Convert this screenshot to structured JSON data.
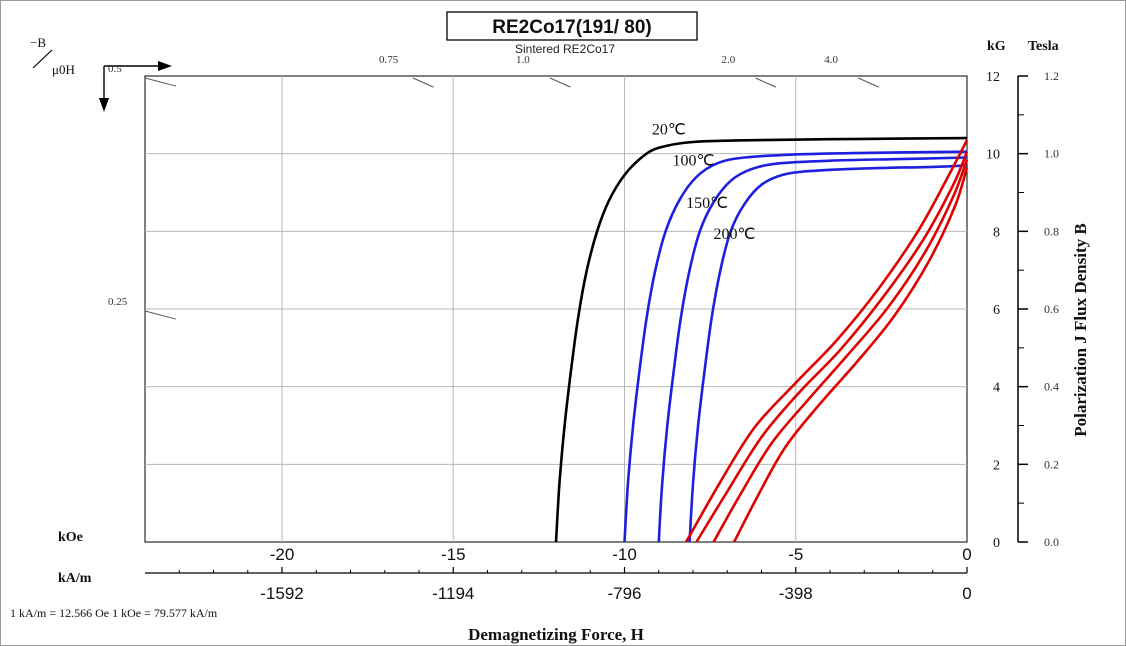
{
  "chart_data": {
    "type": "line",
    "title": "RE2Co17(191/ 80)",
    "subtitle": "Sintered RE2Co17",
    "xlabel": "Demagnetizing Force, H",
    "ylabel": "Polarization J Flux Density B",
    "x_unit_primary": "kOe",
    "x_unit_secondary": "kA/m",
    "y_unit_left": "kG",
    "y_unit_right": "Tesla",
    "permeance_label": "−B / μ0H",
    "conversion_note": "1 kA/m = 12.566 Oe 1 kOe = 79.577 kA/m",
    "xlim": [
      -24,
      0
    ],
    "ylim": [
      0,
      12
    ],
    "grid": true,
    "x_ticks": [
      -20,
      -15,
      -10,
      -5,
      0
    ],
    "x_tick_labels": [
      "-20",
      "-15",
      "-10",
      "-5",
      "0"
    ],
    "x2_tick_labels": [
      "-1592",
      "-1194",
      "-796",
      "-398",
      "0"
    ],
    "y_ticks_kG": [
      0,
      2,
      4,
      6,
      8,
      10,
      12
    ],
    "y_tick_labels_kG": [
      "0",
      "2",
      "4",
      "6",
      "8",
      "10",
      "12"
    ],
    "y_tick_labels_T": [
      "0.0",
      "0.2",
      "0.4",
      "0.6",
      "0.8",
      "1.0",
      "1.2"
    ],
    "permeance_coefficients": [
      {
        "label": "0.5",
        "x": -24,
        "y": 12
      },
      {
        "label": "0.75",
        "x": -16,
        "y": 12
      },
      {
        "label": "1.0",
        "x": -12,
        "y": 12
      },
      {
        "label": "2.0",
        "x": -6,
        "y": 12
      },
      {
        "label": "4.0",
        "x": -3,
        "y": 12
      },
      {
        "label": "0.25",
        "x": -24,
        "y": 6
      }
    ],
    "colors": {
      "intrinsic_20": "#000000",
      "intrinsic_hot": "#1f1fe0",
      "normal": "#e00000",
      "grid": "#b8b8b8",
      "axis": "#000000"
    },
    "series": [
      {
        "name": "20℃",
        "kind": "intrinsic",
        "x": [
          -12,
          -11.9,
          -11.75,
          -11.55,
          -11.35,
          -11.1,
          -10.8,
          -10.45,
          -10.0,
          -9.5,
          -9.0,
          -8.0,
          -6.0,
          -3.0,
          0
        ],
        "y": [
          0,
          1.5,
          3.0,
          4.5,
          5.8,
          7.0,
          8.0,
          8.8,
          9.45,
          9.9,
          10.15,
          10.3,
          10.35,
          10.38,
          10.4
        ]
      },
      {
        "name": "100℃",
        "kind": "intrinsic",
        "x": [
          -10,
          -9.9,
          -9.75,
          -9.55,
          -9.35,
          -9.1,
          -8.8,
          -8.4,
          -7.9,
          -7.3,
          -6.5,
          -5.0,
          -3.0,
          0
        ],
        "y": [
          0,
          1.5,
          3.0,
          4.5,
          5.8,
          7.0,
          8.0,
          8.8,
          9.4,
          9.75,
          9.9,
          9.98,
          10.02,
          10.05
        ]
      },
      {
        "name": "150℃",
        "kind": "intrinsic",
        "x": [
          -9,
          -8.9,
          -8.75,
          -8.55,
          -8.35,
          -8.1,
          -7.8,
          -7.4,
          -6.9,
          -6.3,
          -5.5,
          -4.0,
          -2.0,
          0
        ],
        "y": [
          0,
          1.5,
          3.0,
          4.5,
          5.8,
          7.0,
          8.0,
          8.75,
          9.3,
          9.6,
          9.75,
          9.82,
          9.86,
          9.9
        ]
      },
      {
        "name": "200℃",
        "kind": "intrinsic",
        "x": [
          -8.1,
          -8.0,
          -7.85,
          -7.65,
          -7.45,
          -7.2,
          -6.9,
          -6.5,
          -6.0,
          -5.4,
          -4.6,
          -3.0,
          -1.0,
          0
        ],
        "y": [
          0,
          1.5,
          3.0,
          4.5,
          5.8,
          7.0,
          8.0,
          8.7,
          9.2,
          9.45,
          9.55,
          9.62,
          9.66,
          9.7
        ]
      },
      {
        "name": "",
        "kind": "normal",
        "x": [
          -8.2,
          -7.2,
          -6.2,
          -5.0,
          -3.8,
          -2.6,
          -1.4,
          -0.5,
          0
        ],
        "y": [
          0,
          1.55,
          2.95,
          4.1,
          5.2,
          6.5,
          8.05,
          9.5,
          10.35
        ]
      },
      {
        "name": "",
        "kind": "normal",
        "x": [
          -7.9,
          -7.0,
          -6.0,
          -4.9,
          -3.7,
          -2.5,
          -1.3,
          -0.4,
          0
        ],
        "y": [
          0,
          1.3,
          2.7,
          3.85,
          4.95,
          6.25,
          7.75,
          9.2,
          10.05
        ]
      },
      {
        "name": "",
        "kind": "normal",
        "x": [
          -7.4,
          -6.6,
          -5.7,
          -4.6,
          -3.5,
          -2.3,
          -1.2,
          -0.4,
          0
        ],
        "y": [
          0,
          1.25,
          2.55,
          3.7,
          4.8,
          6.05,
          7.5,
          8.9,
          9.85
        ]
      },
      {
        "name": "",
        "kind": "normal",
        "x": [
          -6.8,
          -6.1,
          -5.3,
          -4.3,
          -3.2,
          -2.1,
          -1.1,
          -0.35,
          0
        ],
        "y": [
          0,
          1.2,
          2.45,
          3.55,
          4.65,
          5.85,
          7.25,
          8.65,
          9.65
        ]
      }
    ],
    "annotations": [
      {
        "text": "20℃",
        "x": -9.2,
        "y": 10.5
      },
      {
        "text": "100℃",
        "x": -8.6,
        "y": 9.7
      },
      {
        "text": "150℃",
        "x": -8.2,
        "y": 8.6
      },
      {
        "text": "200℃",
        "x": -7.4,
        "y": 7.8
      }
    ]
  }
}
